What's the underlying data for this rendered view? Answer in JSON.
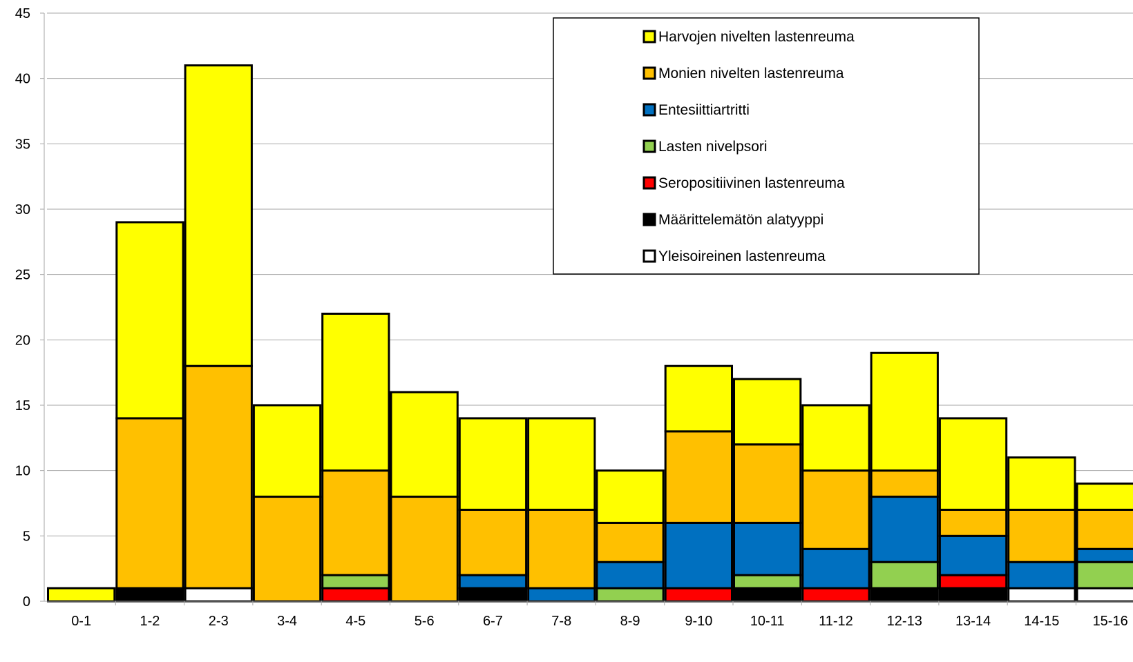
{
  "chart_data": {
    "type": "bar",
    "stacked": true,
    "categories": [
      "0-1",
      "1-2",
      "2-3",
      "3-4",
      "4-5",
      "5-6",
      "6-7",
      "7-8",
      "8-9",
      "9-10",
      "10-11",
      "11-12",
      "12-13",
      "13-14",
      "14-15",
      "15-16"
    ],
    "ylim": [
      0,
      45
    ],
    "yticks": [
      0,
      5,
      10,
      15,
      20,
      25,
      30,
      35,
      40,
      45
    ],
    "grid": true,
    "legend_position": "top-right",
    "series": [
      {
        "name": "Yleisoireinen lastenreuma",
        "color": "#ffffff",
        "values": [
          0,
          0,
          1,
          0,
          0,
          0,
          0,
          0,
          0,
          0,
          0,
          0,
          0,
          0,
          1,
          1
        ]
      },
      {
        "name": "Määrittelemätön alatyyppi",
        "color": "#000000",
        "values": [
          0,
          1,
          0,
          0,
          0,
          0,
          1,
          0,
          0,
          0,
          1,
          0,
          1,
          1,
          0,
          0
        ]
      },
      {
        "name": "Seropositiivinen lastenreuma",
        "color": "#ff0000",
        "values": [
          0,
          0,
          0,
          0,
          1,
          0,
          0,
          0,
          0,
          1,
          0,
          1,
          0,
          1,
          0,
          0
        ]
      },
      {
        "name": "Lasten nivelpsori",
        "color": "#92d050",
        "values": [
          0,
          0,
          0,
          0,
          1,
          0,
          0,
          0,
          1,
          0,
          1,
          0,
          2,
          0,
          0,
          2
        ]
      },
      {
        "name": "Entesiittiartritti",
        "color": "#0070c0",
        "values": [
          0,
          0,
          0,
          0,
          0,
          0,
          1,
          1,
          2,
          5,
          4,
          3,
          5,
          3,
          2,
          1
        ]
      },
      {
        "name": "Monien nivelten lastenreuma",
        "color": "#ffc000",
        "values": [
          0,
          13,
          17,
          8,
          8,
          8,
          5,
          6,
          3,
          7,
          6,
          6,
          2,
          2,
          4,
          3
        ]
      },
      {
        "name": "Harvojen nivelten lastenreuma",
        "color": "#ffff00",
        "values": [
          1,
          15,
          23,
          7,
          12,
          8,
          7,
          7,
          4,
          5,
          5,
          5,
          9,
          7,
          4,
          2
        ]
      }
    ],
    "legend_order": [
      "Harvojen nivelten lastenreuma",
      "Monien nivelten lastenreuma",
      "Entesiittiartritti",
      "Lasten nivelpsori",
      "Seropositiivinen lastenreuma",
      "Määrittelemätön alatyyppi",
      "Yleisoireinen lastenreuma"
    ]
  }
}
